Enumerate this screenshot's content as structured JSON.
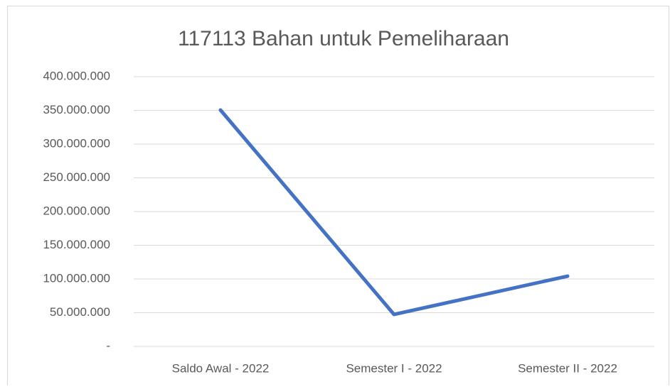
{
  "chart_data": {
    "type": "line",
    "title": "117113 Bahan untuk Pemeliharaan",
    "categories": [
      "Saldo Awal - 2022",
      "Semester I - 2022",
      "Semester II - 2022"
    ],
    "series": [
      {
        "name": "117113 Bahan untuk Pemeliharaan",
        "color": "#4472c4",
        "values": [
          350500000,
          47400000,
          104200000
        ]
      }
    ],
    "ylim": [
      0,
      400000000
    ],
    "yticks": [
      {
        "value": 0,
        "label": "-"
      },
      {
        "value": 50000000,
        "label": "50.000.000"
      },
      {
        "value": 100000000,
        "label": "100.000.000"
      },
      {
        "value": 150000000,
        "label": "150.000.000"
      },
      {
        "value": 200000000,
        "label": "200.000.000"
      },
      {
        "value": 250000000,
        "label": "250.000.000"
      },
      {
        "value": 300000000,
        "label": "300.000.000"
      },
      {
        "value": 350000000,
        "label": "350.000.000"
      },
      {
        "value": 400000000,
        "label": "400.000.000"
      }
    ],
    "grid": true
  }
}
